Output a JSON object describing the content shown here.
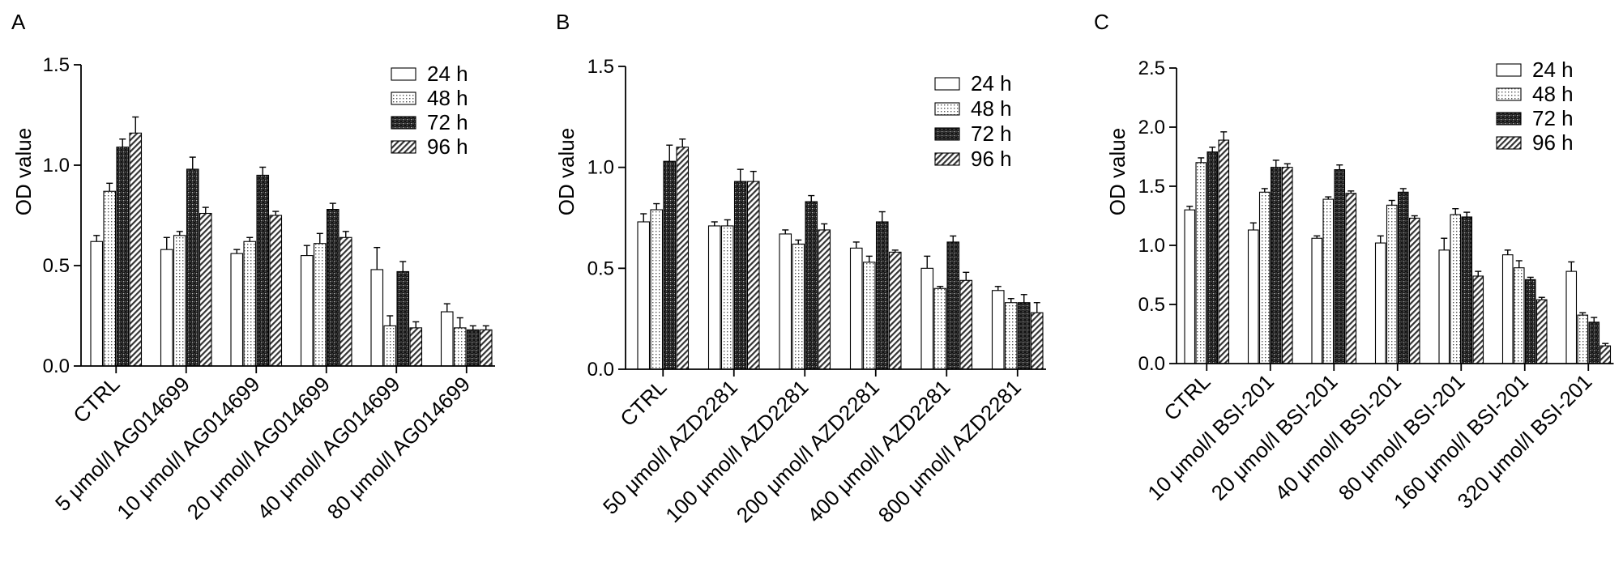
{
  "figure": {
    "legend_entries": [
      "24 h",
      "48 h",
      "72 h",
      "96 h"
    ],
    "fills": [
      "plain",
      "dotted",
      "crosshatch",
      "diagonal"
    ]
  },
  "chart_data": [
    {
      "type": "bar",
      "panel": "A",
      "ylabel": "OD value",
      "ylim": [
        0,
        1.5
      ],
      "yticks": [
        "0.0",
        "0.5",
        "1.0",
        "1.5"
      ],
      "ytick_values": [
        0,
        0.5,
        1.0,
        1.5
      ],
      "legend": "top-right",
      "categories": [
        "CTRL",
        "5 μmol/l AG014699",
        "10 μmol/l AG014699",
        "20 μmol/l AG014699",
        "40 μmol/l AG014699",
        "80 μmol/l AG014699"
      ],
      "series": [
        {
          "name": "24 h",
          "values": [
            0.62,
            0.58,
            0.56,
            0.55,
            0.48,
            0.27
          ],
          "errors": [
            0.03,
            0.06,
            0.02,
            0.05,
            0.11,
            0.04
          ]
        },
        {
          "name": "48 h",
          "values": [
            0.87,
            0.65,
            0.62,
            0.61,
            0.2,
            0.19
          ],
          "errors": [
            0.04,
            0.02,
            0.02,
            0.05,
            0.05,
            0.05
          ]
        },
        {
          "name": "72 h",
          "values": [
            1.09,
            0.98,
            0.95,
            0.78,
            0.47,
            0.18
          ],
          "errors": [
            0.04,
            0.06,
            0.04,
            0.03,
            0.05,
            0.02
          ]
        },
        {
          "name": "96 h",
          "values": [
            1.16,
            0.76,
            0.75,
            0.64,
            0.19,
            0.18
          ],
          "errors": [
            0.08,
            0.03,
            0.02,
            0.03,
            0.03,
            0.02
          ]
        }
      ]
    },
    {
      "type": "bar",
      "panel": "B",
      "ylabel": "OD value",
      "ylim": [
        0,
        1.5
      ],
      "yticks": [
        "0.0",
        "0.5",
        "1.0",
        "1.5"
      ],
      "ytick_values": [
        0,
        0.5,
        1.0,
        1.5
      ],
      "legend": "top-right",
      "categories": [
        "CTRL",
        "50 μmol/l AZD2281",
        "100 μmol/l AZD2281",
        "200 μmol/l AZD2281",
        "400 μmol/l AZD2281",
        "800 μmol/l AZD2281"
      ],
      "series": [
        {
          "name": "24 h",
          "values": [
            0.73,
            0.71,
            0.67,
            0.6,
            0.5,
            0.39
          ],
          "errors": [
            0.04,
            0.02,
            0.02,
            0.03,
            0.06,
            0.02
          ]
        },
        {
          "name": "48 h",
          "values": [
            0.79,
            0.71,
            0.62,
            0.53,
            0.4,
            0.33
          ],
          "errors": [
            0.03,
            0.03,
            0.02,
            0.03,
            0.01,
            0.02
          ]
        },
        {
          "name": "72 h",
          "values": [
            1.03,
            0.93,
            0.83,
            0.73,
            0.63,
            0.33
          ],
          "errors": [
            0.08,
            0.06,
            0.03,
            0.05,
            0.03,
            0.04
          ]
        },
        {
          "name": "96 h",
          "values": [
            1.1,
            0.93,
            0.69,
            0.58,
            0.44,
            0.28
          ],
          "errors": [
            0.04,
            0.05,
            0.03,
            0.01,
            0.04,
            0.05
          ]
        }
      ]
    },
    {
      "type": "bar",
      "panel": "C",
      "ylabel": "OD value",
      "ylim": [
        0,
        2.5
      ],
      "yticks": [
        "0.0",
        "0.5",
        "1.0",
        "1.5",
        "2.0",
        "2.5"
      ],
      "ytick_values": [
        0,
        0.5,
        1.0,
        1.5,
        2.0,
        2.5
      ],
      "legend": "top-right",
      "categories": [
        "CTRL",
        "10 μmol/l BSI-201",
        "20 μmol/l BSI-201",
        "40 μmol/l BSI-201",
        "80 μmol/l BSI-201",
        "160 μmol/l BSI-201",
        "320 μmol/l BSI-201"
      ],
      "series": [
        {
          "name": "24 h",
          "values": [
            1.3,
            1.13,
            1.06,
            1.02,
            0.96,
            0.92,
            0.78
          ],
          "errors": [
            0.03,
            0.06,
            0.02,
            0.06,
            0.1,
            0.04,
            0.08
          ]
        },
        {
          "name": "48 h",
          "values": [
            1.7,
            1.45,
            1.39,
            1.34,
            1.26,
            0.81,
            0.41
          ],
          "errors": [
            0.04,
            0.03,
            0.02,
            0.04,
            0.05,
            0.06,
            0.02
          ]
        },
        {
          "name": "72 h",
          "values": [
            1.79,
            1.66,
            1.64,
            1.45,
            1.24,
            0.71,
            0.35
          ],
          "errors": [
            0.04,
            0.06,
            0.04,
            0.03,
            0.04,
            0.02,
            0.04
          ]
        },
        {
          "name": "96 h",
          "values": [
            1.89,
            1.66,
            1.44,
            1.23,
            0.74,
            0.54,
            0.15
          ],
          "errors": [
            0.07,
            0.03,
            0.02,
            0.02,
            0.04,
            0.02,
            0.02
          ]
        }
      ]
    }
  ]
}
